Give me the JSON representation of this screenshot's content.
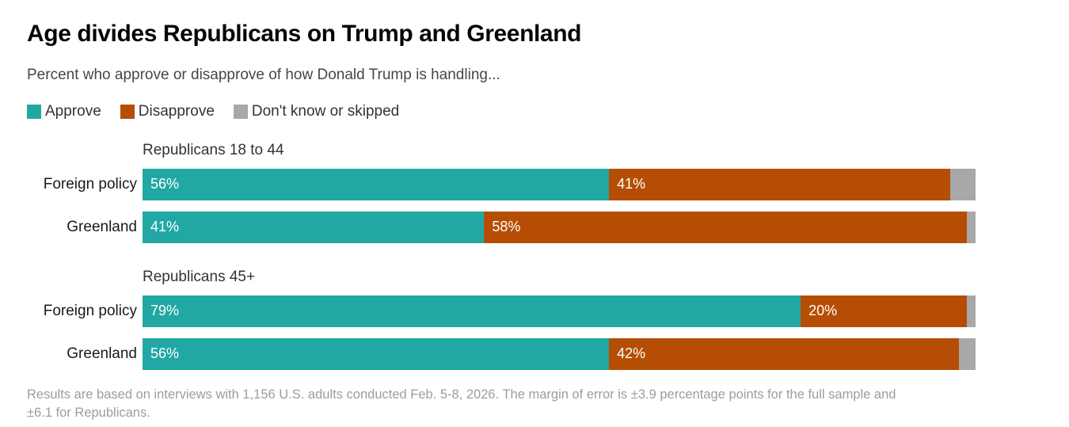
{
  "title": "Age divides Republicans on Trump and Greenland",
  "subtitle": "Percent who approve or disapprove of how Donald Trump is handling...",
  "legend": [
    {
      "label": "Approve",
      "color": "#21a8a4"
    },
    {
      "label": "Disapprove",
      "color": "#b54e04"
    },
    {
      "label": "Don't know or skipped",
      "color": "#a8a8a8"
    }
  ],
  "colors": {
    "approve": "#21a8a4",
    "disapprove": "#b54e04",
    "dont_know": "#a8a8a8"
  },
  "chart_data": {
    "type": "bar",
    "orientation": "horizontal",
    "stacked": true,
    "unit": "percent",
    "xlim": [
      0,
      100
    ],
    "grid": false,
    "legend_position": "top",
    "series_names": [
      "Approve",
      "Disapprove",
      "Don't know or skipped"
    ],
    "groups": [
      {
        "header": "Republicans 18 to 44",
        "rows": [
          {
            "label": "Foreign policy",
            "approve": 56,
            "disapprove": 41,
            "dont_know": 3,
            "approve_label": "56%",
            "disapprove_label": "41%"
          },
          {
            "label": "Greenland",
            "approve": 41,
            "disapprove": 58,
            "dont_know": 1,
            "approve_label": "41%",
            "disapprove_label": "58%"
          }
        ]
      },
      {
        "header": "Republicans 45+",
        "rows": [
          {
            "label": "Foreign policy",
            "approve": 79,
            "disapprove": 20,
            "dont_know": 1,
            "approve_label": "79%",
            "disapprove_label": "20%"
          },
          {
            "label": "Greenland",
            "approve": 56,
            "disapprove": 42,
            "dont_know": 2,
            "approve_label": "56%",
            "disapprove_label": "42%"
          }
        ]
      }
    ]
  },
  "footnote": "Results are based on interviews with 1,156 U.S. adults conducted Feb. 5-8, 2026. The margin of error is ±3.9 percentage points for the full sample and ±6.1 for Republicans."
}
